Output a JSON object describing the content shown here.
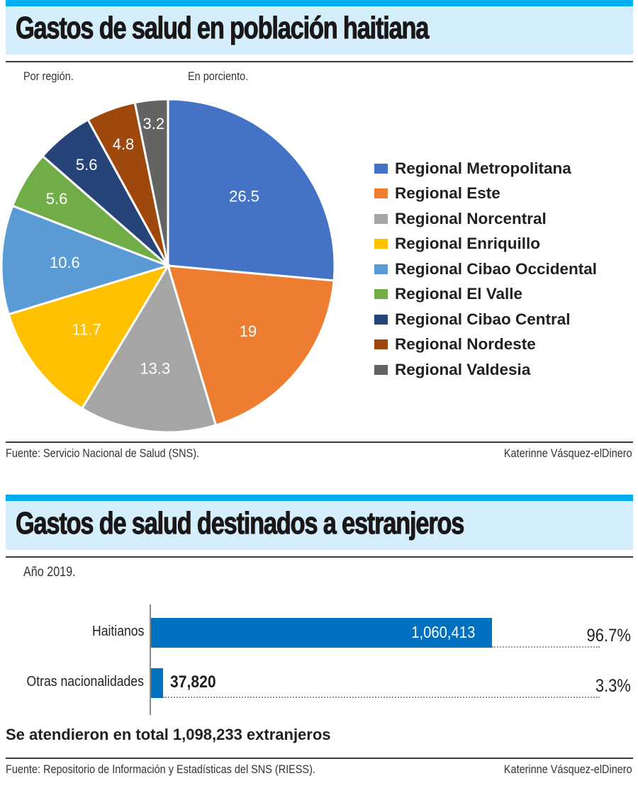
{
  "section1": {
    "title": "Gastos de salud en población haitiana",
    "subtitle_left": "Por región.",
    "subtitle_right": "En porciento.",
    "source": "Fuente: Servicio Nacional de Salud (SNS).",
    "credit": "Katerinne Vásquez-elDinero"
  },
  "section2": {
    "title": "Gastos de salud destinados a estranjeros",
    "subtitle": "Año 2019.",
    "total_note": "Se atendieron en total 1,098,233 extranjeros",
    "source": "Fuente: Repositorio de Información y Estadísticas del SNS (RIESS).",
    "credit": "Katerinne Vásquez-elDinero"
  },
  "colors": {
    "brand_bar": "#00aeef",
    "band": "#d4eefb",
    "bar_fill": "#0070c0"
  },
  "chart_data": [
    {
      "type": "pie",
      "title": "Gastos de salud en población haitiana",
      "subtitle": "Por región. En porciento.",
      "start": "12 o'clock, clockwise",
      "legend_position": "right",
      "categories": [
        "Regional Metropolitana",
        "Regional Este",
        "Regional Norcentral",
        "Regional Enriquillo",
        "Regional Cibao Occidental",
        "Regional El Valle",
        "Regional Cibao Central",
        "Regional Nordeste",
        "Regional Valdesia"
      ],
      "values": [
        26.5,
        19,
        13.3,
        11.7,
        10.6,
        5.6,
        5.6,
        4.8,
        3.2
      ],
      "labels": [
        "26.5",
        "19",
        "13.3",
        "11.7",
        "10.6",
        "5.6",
        "5.6",
        "4.8",
        "3.2"
      ],
      "colors": [
        "#4472c4",
        "#ed7d31",
        "#a5a5a5",
        "#ffc000",
        "#5b9bd5",
        "#70ad47",
        "#264478",
        "#9e480e",
        "#636363"
      ]
    },
    {
      "type": "bar",
      "orientation": "horizontal",
      "title": "Gastos de salud destinados a estranjeros",
      "subtitle": "Año 2019.",
      "categories": [
        "Haitianos",
        "Otras nacionalidades"
      ],
      "values": [
        1060413,
        37820
      ],
      "value_labels": [
        "1,060,413",
        "37,820"
      ],
      "percent_labels": [
        "96.7%",
        "3.3%"
      ],
      "xlim": [
        0,
        1060413
      ],
      "grid": false
    }
  ]
}
